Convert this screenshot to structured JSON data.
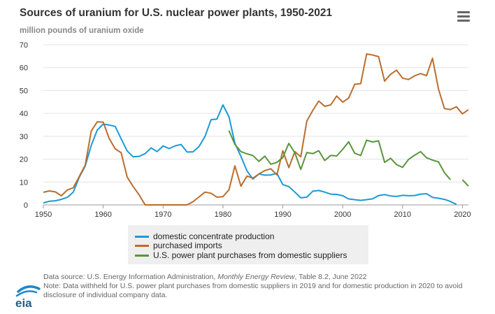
{
  "header": {
    "title": "Sources of uranium for U.S. nuclear power plants, 1950-2021",
    "unit_label": "million pounds of uranium oxide",
    "menu_icon": "hamburger-menu-icon"
  },
  "chart_data": {
    "type": "line",
    "title": "Sources of uranium for U.S. nuclear power plants, 1950-2021",
    "ylabel": "million pounds of uranium oxide",
    "xlabel": "",
    "xlim": [
      1950,
      2021
    ],
    "ylim": [
      0,
      70
    ],
    "x_ticks": [
      1950,
      1960,
      1970,
      1980,
      1990,
      2000,
      2010,
      2020
    ],
    "y_ticks": [
      0,
      10,
      20,
      30,
      40,
      50,
      60,
      70
    ],
    "grid": "horizontal",
    "legend_position": "bottom",
    "series": [
      {
        "name": "domestic concentrate production",
        "color": "#1a9ad6",
        "x": [
          1950,
          1951,
          1952,
          1953,
          1954,
          1955,
          1956,
          1957,
          1958,
          1959,
          1960,
          1961,
          1962,
          1963,
          1964,
          1965,
          1966,
          1967,
          1968,
          1969,
          1970,
          1971,
          1972,
          1973,
          1974,
          1975,
          1976,
          1977,
          1978,
          1979,
          1980,
          1981,
          1982,
          1983,
          1984,
          1985,
          1986,
          1987,
          1988,
          1989,
          1990,
          1991,
          1992,
          1993,
          1994,
          1995,
          1996,
          1997,
          1998,
          1999,
          2000,
          2001,
          2002,
          2003,
          2004,
          2005,
          2006,
          2007,
          2008,
          2009,
          2010,
          2011,
          2012,
          2013,
          2014,
          2015,
          2016,
          2017,
          2018,
          2019
        ],
        "y": [
          0.9,
          1.6,
          1.8,
          2.4,
          3.3,
          5.6,
          12.1,
          17,
          26,
          32.7,
          35.3,
          34.9,
          34.3,
          28.9,
          23.6,
          21,
          21.2,
          22.4,
          24.9,
          23.3,
          25.8,
          24.6,
          25.8,
          26.4,
          23.1,
          23.2,
          25.5,
          29.9,
          37.2,
          37.5,
          43.7,
          38.5,
          26.9,
          21.2,
          14.9,
          11.3,
          13.5,
          13,
          13.1,
          13.8,
          8.9,
          8,
          5.6,
          3.1,
          3.4,
          6,
          6.3,
          5.6,
          4.7,
          4.6,
          4,
          2.6,
          2.3,
          2,
          2.3,
          2.7,
          4.1,
          4.5,
          3.9,
          3.7,
          4.2,
          4,
          4.1,
          4.7,
          4.9,
          3.3,
          2.9,
          2.4,
          1.5,
          0.2
        ]
      },
      {
        "name": "purchased imports",
        "color": "#bb6d2c",
        "x": [
          1950,
          1951,
          1952,
          1953,
          1954,
          1955,
          1956,
          1957,
          1958,
          1959,
          1960,
          1961,
          1962,
          1963,
          1964,
          1965,
          1966,
          1967,
          1968,
          1969,
          1970,
          1971,
          1972,
          1973,
          1974,
          1975,
          1976,
          1977,
          1978,
          1979,
          1980,
          1981,
          1982,
          1983,
          1984,
          1985,
          1986,
          1987,
          1988,
          1989,
          1990,
          1991,
          1992,
          1993,
          1994,
          1995,
          1996,
          1997,
          1998,
          1999,
          2000,
          2001,
          2002,
          2003,
          2004,
          2005,
          2006,
          2007,
          2008,
          2009,
          2010,
          2011,
          2012,
          2013,
          2014,
          2015,
          2016,
          2017,
          2018,
          2019,
          2020,
          2021
        ],
        "y": [
          5.5,
          6.1,
          5.7,
          4,
          6.5,
          7.5,
          12.4,
          17.4,
          32.3,
          36.3,
          36.2,
          29,
          24.5,
          22.8,
          12.2,
          8,
          4.4,
          0,
          0,
          0,
          0,
          0,
          0,
          0,
          0,
          1.4,
          3.5,
          5.6,
          5.1,
          3.4,
          3.6,
          6.6,
          17.1,
          8.2,
          12.6,
          11.7,
          13.5,
          15,
          15.8,
          13.1,
          23.7,
          16.3,
          23.3,
          21,
          36.6,
          41.3,
          45.4,
          43.1,
          43.7,
          47.6,
          44.9,
          46.7,
          52.7,
          53,
          66,
          65.5,
          64.8,
          54.1,
          57.1,
          58.9,
          55.4,
          54.8,
          56.4,
          57.4,
          56.5,
          64.1,
          50.6,
          42.1,
          41.7,
          42.9,
          39.8,
          41.6
        ]
      },
      {
        "name": "U.S. power plant purchases from domestic suppliers",
        "color": "#58953b",
        "x": [
          1981,
          1982,
          1983,
          1984,
          1985,
          1986,
          1987,
          1988,
          1989,
          1990,
          1991,
          1992,
          1993,
          1994,
          1995,
          1996,
          1997,
          1998,
          1999,
          2000,
          2001,
          2002,
          2003,
          2004,
          2005,
          2006,
          2007,
          2008,
          2009,
          2010,
          2011,
          2012,
          2013,
          2014,
          2015,
          2016,
          2017,
          2018,
          2019,
          2020,
          2021
        ],
        "y": [
          32.5,
          26.4,
          23.3,
          22.3,
          21.6,
          19,
          21.3,
          17.8,
          18.6,
          20.7,
          26.9,
          22.8,
          15.5,
          22.9,
          22.4,
          23.7,
          19.4,
          21.6,
          21.4,
          24.3,
          27.6,
          22.6,
          21.6,
          28.3,
          27.5,
          28,
          18.6,
          20.4,
          17.6,
          16.4,
          19.9,
          21.7,
          23.3,
          20.6,
          19.6,
          18.8,
          14.1,
          11,
          null,
          11,
          8.2
        ]
      }
    ]
  },
  "legend": {
    "items": [
      {
        "label": "domestic concentrate production",
        "color": "#1a9ad6"
      },
      {
        "label": "purchased imports",
        "color": "#bb6d2c"
      },
      {
        "label": "U.S. power plant purchases from domestic suppliers",
        "color": "#58953b"
      }
    ]
  },
  "footer": {
    "source_prefix": "Data source: U.S. Energy Information Administration, ",
    "source_pub": "Monthly Energy Review",
    "source_suffix": ", Table 8.2, June 2022",
    "note": "Note: Data withheld for U.S. power plant purchases from domestic suppliers in 2019 and for domestic production in 2020 to avoid disclosure of individual company data.",
    "logo_text": "eia"
  }
}
